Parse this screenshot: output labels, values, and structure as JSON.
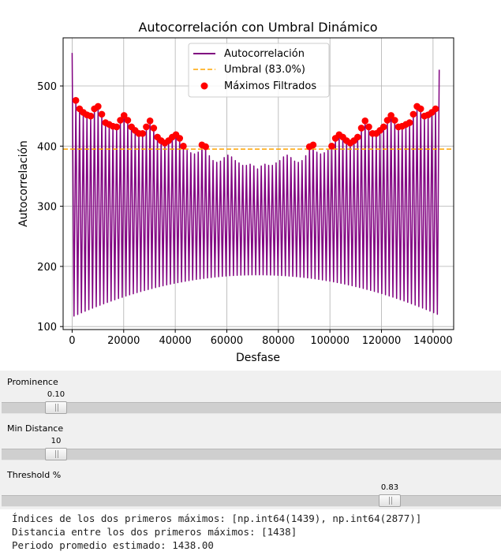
{
  "chart_data": {
    "type": "line",
    "title": "Autocorrelación con Umbral Dinámico",
    "xlabel": "Desfase",
    "ylabel": "Autocorrelación",
    "xlim": [
      -3500,
      148000
    ],
    "ylim": [
      95,
      580
    ],
    "x_ticks": [
      0,
      20000,
      40000,
      60000,
      80000,
      100000,
      120000,
      140000
    ],
    "y_ticks": [
      100,
      200,
      300,
      400,
      500
    ],
    "grid": true,
    "legend_position": "top-center",
    "series": [
      {
        "name": "Autocorrelación",
        "color": "#800080",
        "style": "line"
      },
      {
        "name": "Umbral (83.0%)",
        "color": "#ffa500",
        "style": "dashed",
        "value": 395
      },
      {
        "name": "Máximos Filtrados",
        "color": "#ff0000",
        "style": "scatter"
      }
    ],
    "peak_envelope": [
      [
        1439,
        476
      ],
      [
        2877,
        462
      ],
      [
        4316,
        456
      ],
      [
        5754,
        452
      ],
      [
        7193,
        450
      ],
      [
        8631,
        462
      ],
      [
        10070,
        466
      ],
      [
        11508,
        453
      ],
      [
        12947,
        439
      ],
      [
        14385,
        436
      ],
      [
        15824,
        433
      ],
      [
        17262,
        432
      ],
      [
        18701,
        443
      ],
      [
        20139,
        451
      ],
      [
        21578,
        443
      ],
      [
        23016,
        432
      ],
      [
        24455,
        426
      ],
      [
        25893,
        421
      ],
      [
        27332,
        421
      ],
      [
        28770,
        432
      ],
      [
        30209,
        442
      ],
      [
        31647,
        430
      ],
      [
        33086,
        415
      ],
      [
        34524,
        409
      ],
      [
        35963,
        405
      ],
      [
        37401,
        409
      ],
      [
        38840,
        415
      ],
      [
        40278,
        419
      ],
      [
        41717,
        413
      ],
      [
        43155,
        400
      ],
      [
        44594,
        393
      ],
      [
        46032,
        389
      ],
      [
        47471,
        387
      ],
      [
        48909,
        390
      ],
      [
        50348,
        402
      ],
      [
        51786,
        399
      ],
      [
        53225,
        384
      ],
      [
        54663,
        376
      ],
      [
        56102,
        373
      ],
      [
        57540,
        375
      ],
      [
        58979,
        381
      ],
      [
        60417,
        385
      ],
      [
        61856,
        382
      ],
      [
        63294,
        376
      ],
      [
        64733,
        372
      ],
      [
        66171,
        368
      ],
      [
        67610,
        368
      ],
      [
        69048,
        370
      ],
      [
        70487,
        367
      ],
      [
        71925,
        362
      ],
      [
        73364,
        367
      ],
      [
        74802,
        370
      ],
      [
        76241,
        368
      ],
      [
        77679,
        368
      ],
      [
        79118,
        372
      ],
      [
        80556,
        376
      ],
      [
        81995,
        382
      ],
      [
        83433,
        385
      ],
      [
        84872,
        381
      ],
      [
        86310,
        375
      ],
      [
        87749,
        373
      ],
      [
        89187,
        376
      ],
      [
        90626,
        384
      ],
      [
        92064,
        399
      ],
      [
        93503,
        402
      ],
      [
        94941,
        390
      ],
      [
        96380,
        387
      ],
      [
        97818,
        389
      ],
      [
        99257,
        393
      ],
      [
        100695,
        400
      ],
      [
        102134,
        413
      ],
      [
        103572,
        419
      ],
      [
        105011,
        415
      ],
      [
        106449,
        409
      ],
      [
        107888,
        405
      ],
      [
        109326,
        409
      ],
      [
        110765,
        415
      ],
      [
        112203,
        430
      ],
      [
        113642,
        442
      ],
      [
        115080,
        432
      ],
      [
        116519,
        421
      ],
      [
        117957,
        421
      ],
      [
        119396,
        426
      ],
      [
        120834,
        432
      ],
      [
        122273,
        443
      ],
      [
        123711,
        451
      ],
      [
        125150,
        443
      ],
      [
        126588,
        432
      ],
      [
        128027,
        433
      ],
      [
        129465,
        436
      ],
      [
        130904,
        439
      ],
      [
        132342,
        453
      ],
      [
        133781,
        466
      ],
      [
        135219,
        462
      ],
      [
        136658,
        450
      ],
      [
        138096,
        452
      ],
      [
        139535,
        456
      ],
      [
        140973,
        462
      ]
    ],
    "filtered_maxima": [
      [
        1439,
        476
      ],
      [
        2877,
        462
      ],
      [
        4316,
        456
      ],
      [
        5754,
        452
      ],
      [
        7193,
        450
      ],
      [
        8631,
        462
      ],
      [
        10070,
        466
      ],
      [
        11508,
        453
      ],
      [
        12947,
        439
      ],
      [
        14385,
        436
      ],
      [
        15824,
        433
      ],
      [
        17262,
        432
      ],
      [
        18701,
        443
      ],
      [
        20139,
        451
      ],
      [
        21578,
        443
      ],
      [
        23016,
        432
      ],
      [
        24455,
        426
      ],
      [
        25893,
        421
      ],
      [
        27332,
        421
      ],
      [
        28770,
        432
      ],
      [
        30209,
        442
      ],
      [
        31647,
        430
      ],
      [
        33086,
        415
      ],
      [
        34524,
        409
      ],
      [
        35963,
        405
      ],
      [
        37401,
        409
      ],
      [
        38840,
        415
      ],
      [
        40278,
        419
      ],
      [
        41717,
        413
      ],
      [
        43155,
        400
      ],
      [
        50348,
        402
      ],
      [
        51786,
        399
      ],
      [
        92064,
        399
      ],
      [
        93503,
        402
      ],
      [
        100695,
        400
      ],
      [
        102134,
        413
      ],
      [
        103572,
        419
      ],
      [
        105011,
        415
      ],
      [
        106449,
        409
      ],
      [
        107888,
        405
      ],
      [
        109326,
        409
      ],
      [
        110765,
        415
      ],
      [
        112203,
        430
      ],
      [
        113642,
        442
      ],
      [
        115080,
        432
      ],
      [
        116519,
        421
      ],
      [
        117957,
        421
      ],
      [
        119396,
        426
      ],
      [
        120834,
        432
      ],
      [
        122273,
        443
      ],
      [
        123711,
        451
      ],
      [
        125150,
        443
      ],
      [
        126588,
        432
      ],
      [
        128027,
        433
      ],
      [
        129465,
        436
      ],
      [
        130904,
        439
      ],
      [
        132342,
        453
      ],
      [
        133781,
        466
      ],
      [
        135219,
        462
      ],
      [
        136658,
        450
      ],
      [
        138096,
        452
      ],
      [
        139535,
        456
      ],
      [
        140973,
        462
      ]
    ],
    "endpoints": {
      "start": 555,
      "end": 527
    }
  },
  "controls": {
    "sliders": [
      {
        "label": "Prominence",
        "value": "0.10",
        "fraction": 0.1
      },
      {
        "label": "Min Distance",
        "value": "10",
        "fraction": 0.1
      },
      {
        "label": "Threshold %",
        "value": "0.83",
        "fraction": 0.8
      }
    ]
  },
  "console": {
    "lines": [
      "Índices de los dos primeros máximos: [np.int64(1439), np.int64(2877)]",
      "Distancia entre los dos primeros máximos: [1438]",
      "Periodo promedio estimado: 1438.00"
    ]
  }
}
